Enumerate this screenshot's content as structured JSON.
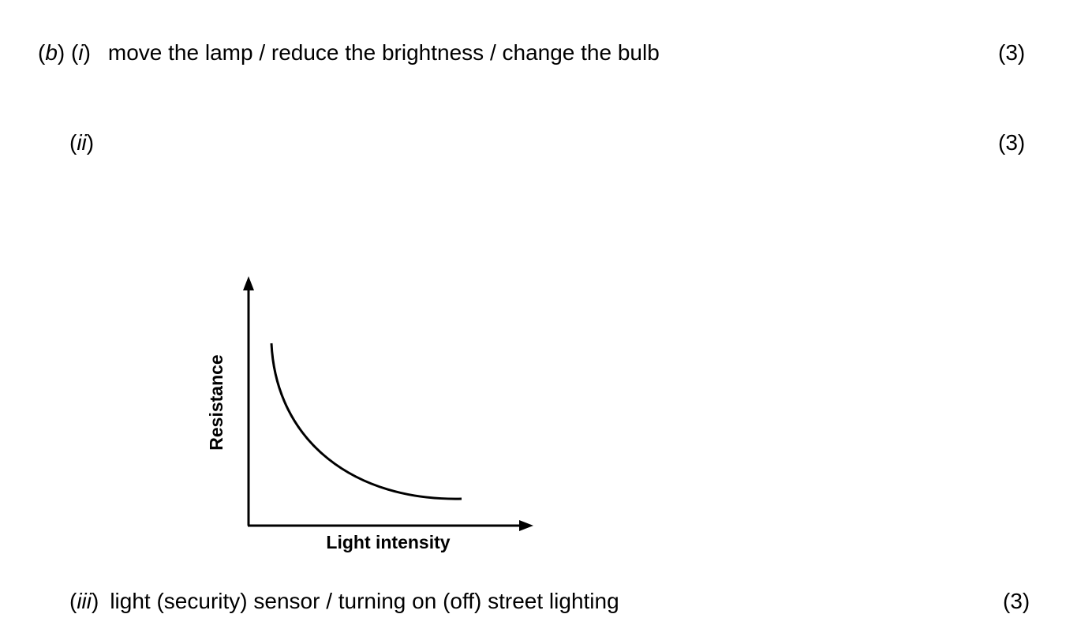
{
  "answers": {
    "b_i": {
      "label_part": "b",
      "label_sub": "i",
      "text": "move the lamp / reduce the brightness / change the bulb",
      "marks": "(3)"
    },
    "b_ii": {
      "label_sub": "ii",
      "marks": "(3)"
    },
    "b_iii": {
      "label_sub": "iii",
      "text": "light (security) sensor / turning on (off) street lighting",
      "marks": "(3)"
    }
  },
  "sketch": {
    "x_label": "Light intensity",
    "y_label": "Resistance",
    "curve": "decreasing"
  }
}
